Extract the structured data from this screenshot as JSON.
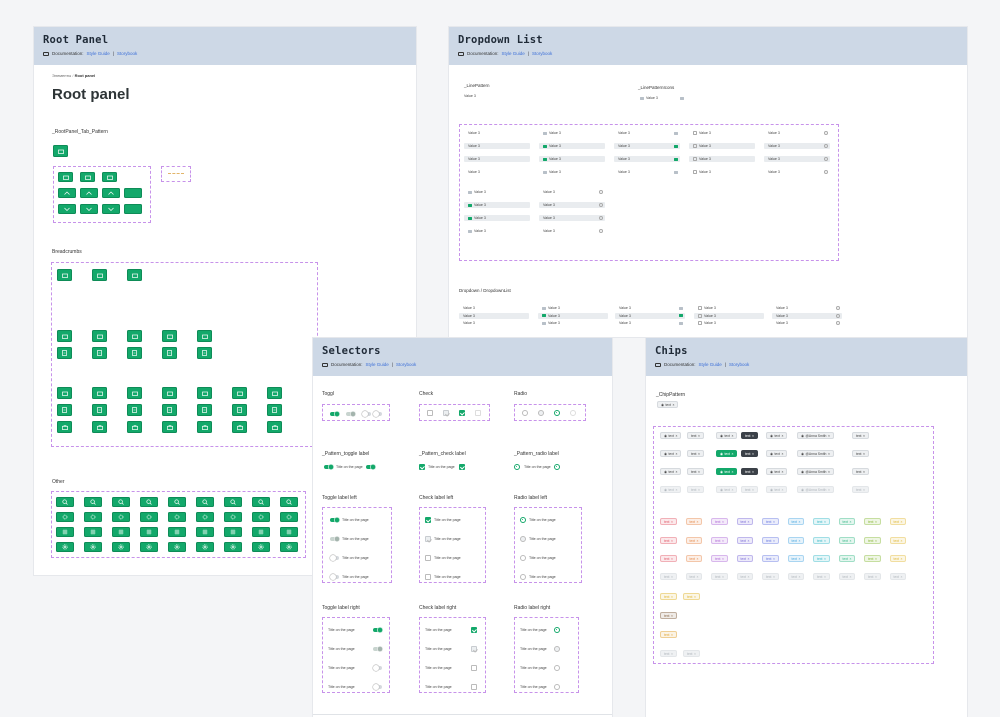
{
  "common": {
    "doc_label": "Documentation:",
    "style_guide": "Style Guide",
    "divider": "|",
    "storybook": "Storybook",
    "value": "Value 3",
    "title_on_page": "Title on the page",
    "chip_text": "text",
    "chip_user": "@Anna Smith"
  },
  "root_panel": {
    "frame_title": "Root Panel",
    "breadcrumb_parent": "Элементы",
    "breadcrumb_sep": "/",
    "breadcrumb_current": "Root panel",
    "page_title": "Root panel",
    "tab_pattern_label": "_RootPanel_Tab_Pattern",
    "breadcrumbs_label": "Breadcrumbs",
    "other_label": "Other"
  },
  "dropdown": {
    "frame_title": "Dropdown List",
    "line_pattern_label": "_LinePattern",
    "line_pattern_icons_label": "_LinePatternIcons",
    "list_label": "Dropdown / DropdownList"
  },
  "selectors": {
    "frame_title": "Selectors",
    "toggl": "Toggl",
    "check": "Check",
    "radio": "Radio",
    "pattern_toggle": "_Pattern_toggle label",
    "pattern_check": "_Pattern_check label",
    "pattern_radio": "_Pattern_radio label",
    "toggle_left": "Toggle label left",
    "check_left": "Check label left",
    "radio_left": "Radio label left",
    "toggle_right": "Toggle label right",
    "check_right": "Check label right",
    "radio_right": "Radio label right"
  },
  "chips": {
    "frame_title": "Chips",
    "chip_pattern_label": "_ChipPattern",
    "color_chip_palette": [
      "#e05a6a",
      "#e58a4a",
      "#b06ad6",
      "#7a6ad6",
      "#6a7ae0",
      "#4aa8e0",
      "#3ab8c8",
      "#3ab88a",
      "#8ab83a",
      "#e0b83a"
    ]
  },
  "colors": {
    "accent_green": "#13a86a",
    "frame_header": "#cdd8e6",
    "dashed_outline": "#c792ea",
    "link": "#3c6fd8"
  }
}
